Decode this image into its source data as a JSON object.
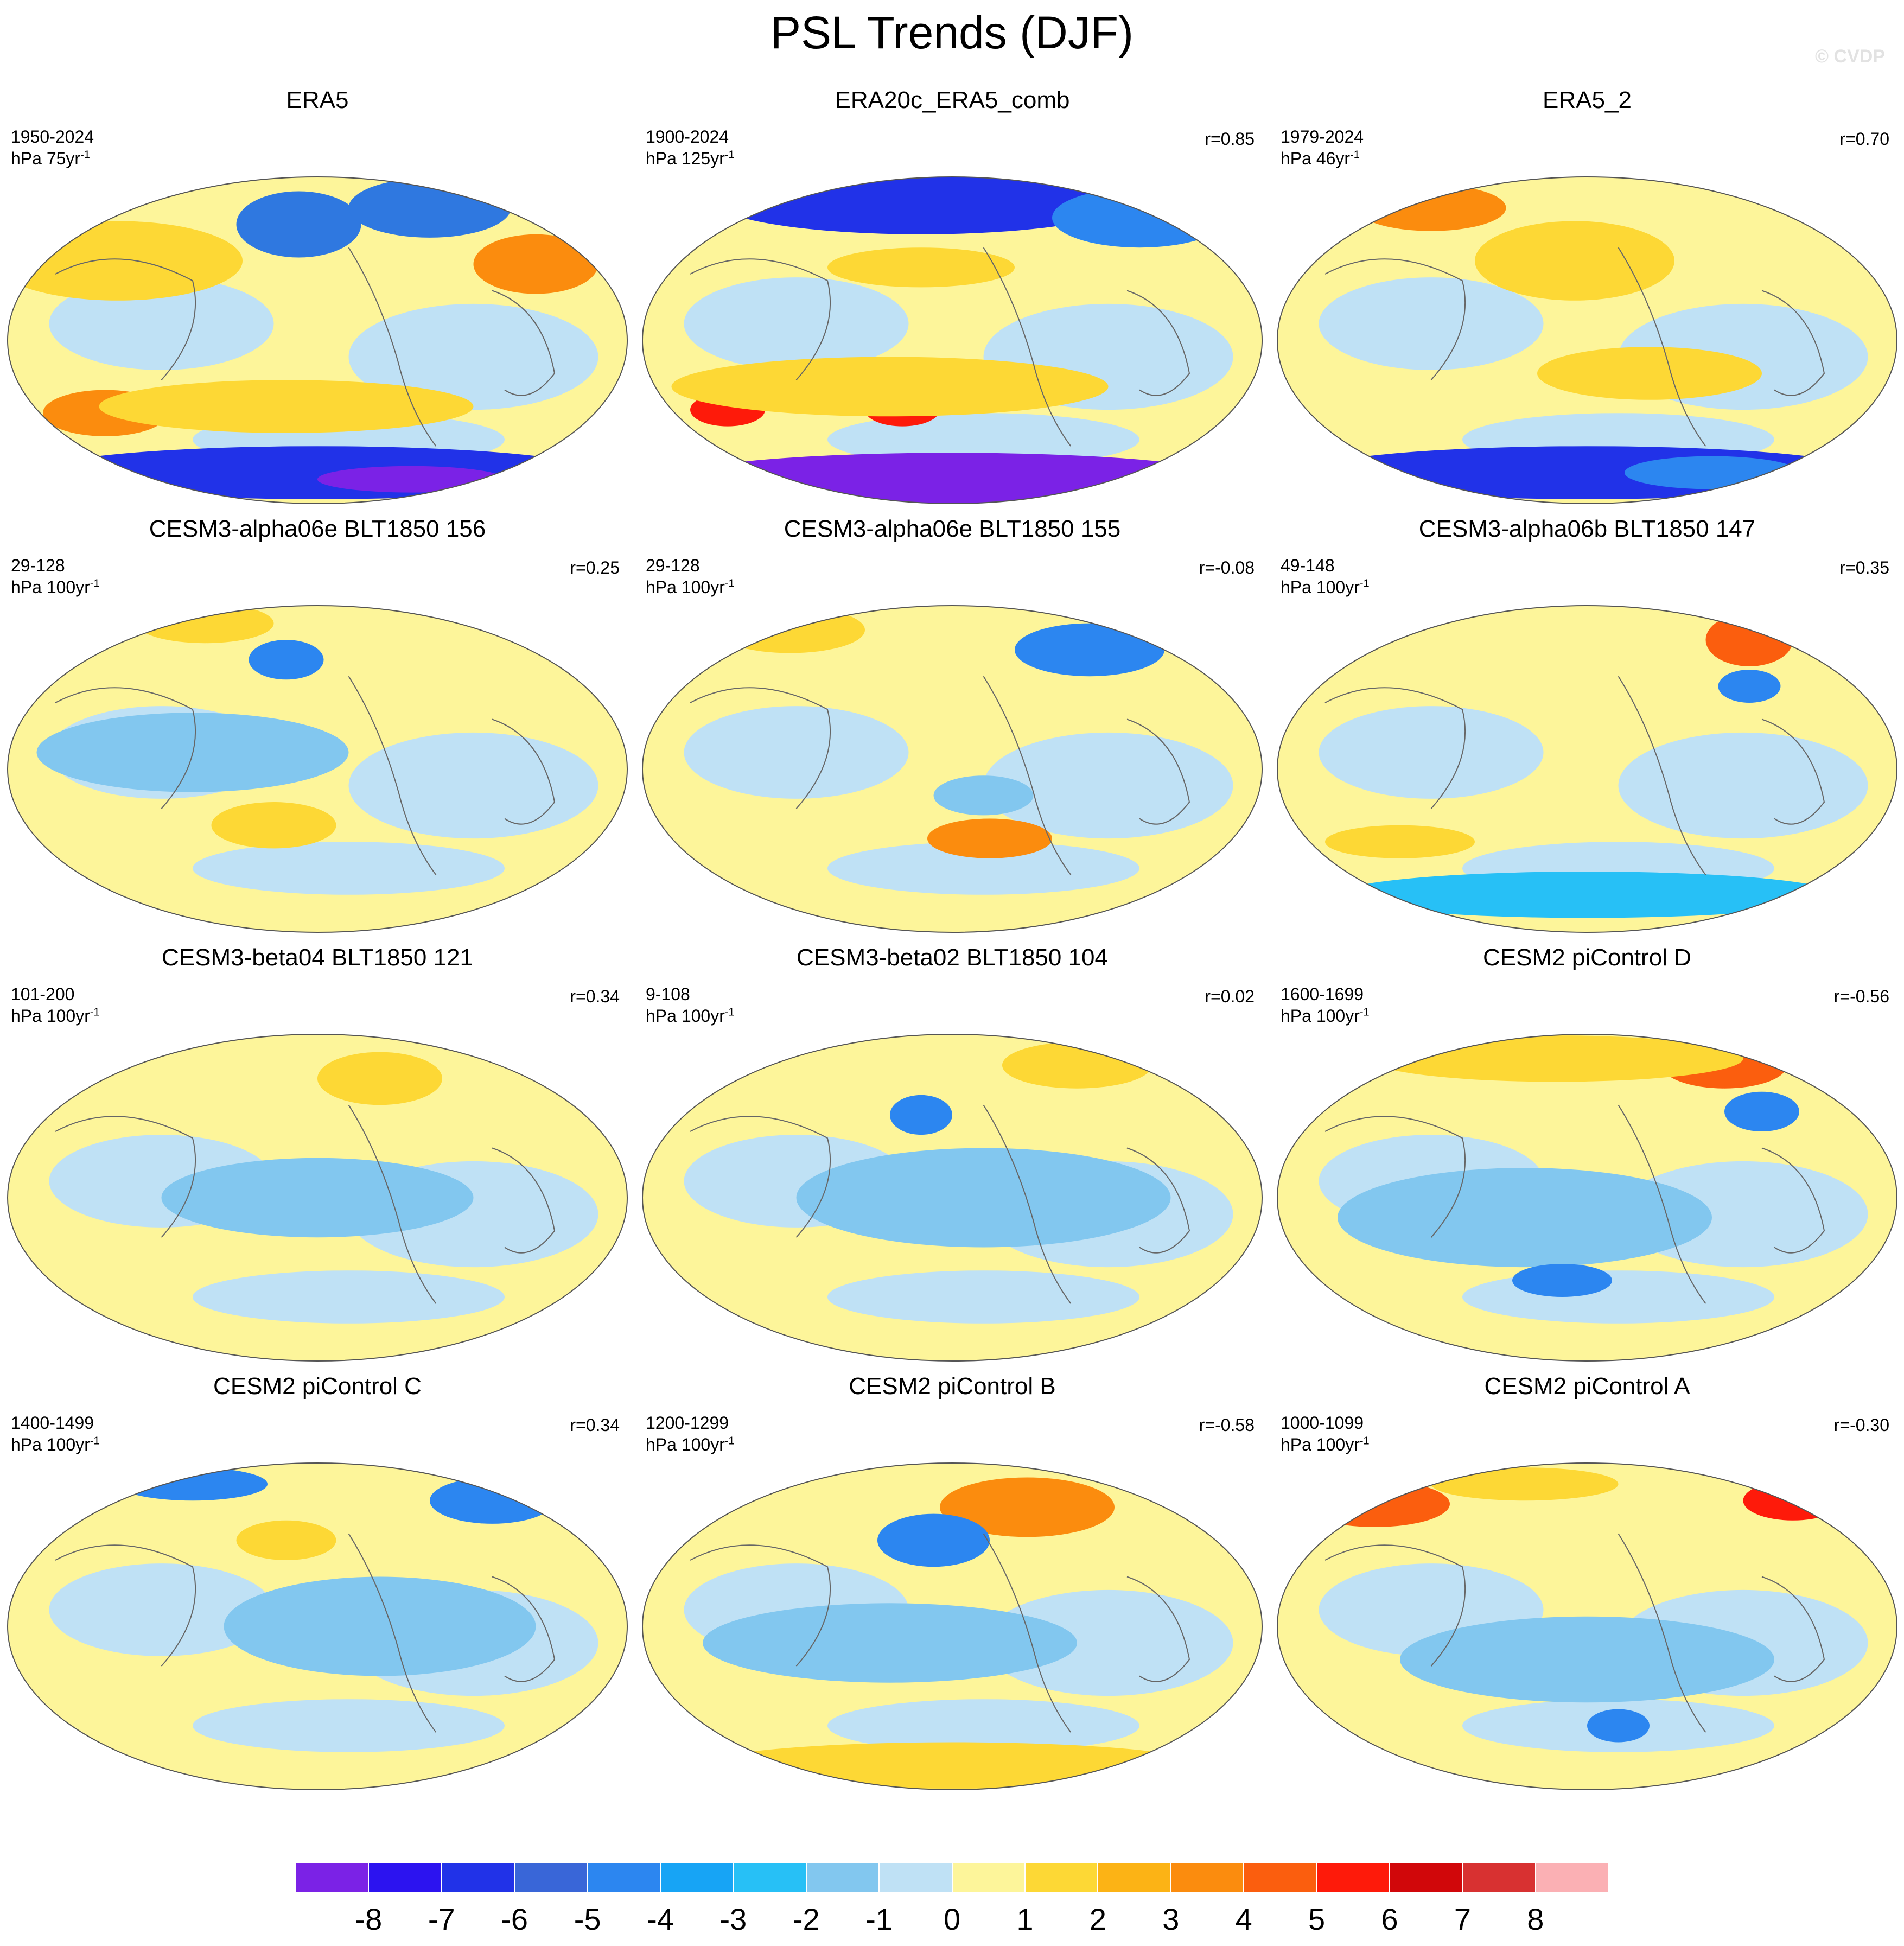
{
  "title": "PSL Trends (DJF)",
  "watermark": "© CVDP",
  "colorbar": {
    "labels": [
      "-8",
      "-7",
      "-6",
      "-5",
      "-4",
      "-3",
      "-2",
      "-1",
      "0",
      "1",
      "2",
      "3",
      "4",
      "5",
      "6",
      "7",
      "8"
    ],
    "colors": [
      "#7b22e6",
      "#2c13f0",
      "#2132e8",
      "#3966d8",
      "#2c86f0",
      "#17a4f5",
      "#27c0f6",
      "#82c7ef",
      "#bfe1f5",
      "#fdf59a",
      "#fdd835",
      "#fcb315",
      "#fb8c0e",
      "#fb5e0e",
      "#fe1a0a",
      "#d1070a",
      "#d83131",
      "#fbb0b4"
    ]
  },
  "panels": [
    {
      "title": "ERA5",
      "period": "1950-2024",
      "units_base": "hPa 75yr",
      "units_exp": "-1",
      "r": "",
      "features": [
        [
          "#2f78e0",
          0.47,
          0.15,
          0.1,
          0.1
        ],
        [
          "#2f78e0",
          0.68,
          0.1,
          0.13,
          0.09
        ],
        [
          "#fb8c0e",
          0.85,
          0.27,
          0.1,
          0.09
        ],
        [
          "#fdd835",
          0.18,
          0.26,
          0.2,
          0.12
        ],
        [
          "#fb8c0e",
          0.16,
          0.72,
          0.1,
          0.07
        ],
        [
          "#fdd835",
          0.45,
          0.7,
          0.3,
          0.08
        ],
        [
          "#2132e8",
          0.5,
          0.9,
          0.45,
          0.08
        ],
        [
          "#7b22e6",
          0.65,
          0.92,
          0.15,
          0.04
        ]
      ]
    },
    {
      "title": "ERA20c_ERA5_comb",
      "period": "1900-2024",
      "units_base": "hPa 125yr",
      "units_exp": "-1",
      "r": "r=0.85",
      "features": [
        [
          "#2132e8",
          0.45,
          0.08,
          0.33,
          0.1
        ],
        [
          "#2c86f0",
          0.8,
          0.13,
          0.14,
          0.09
        ],
        [
          "#fdd835",
          0.45,
          0.28,
          0.15,
          0.06
        ],
        [
          "#fe1a0a",
          0.14,
          0.71,
          0.06,
          0.05
        ],
        [
          "#fe1a0a",
          0.42,
          0.71,
          0.06,
          0.05
        ],
        [
          "#fdd835",
          0.4,
          0.64,
          0.35,
          0.09
        ],
        [
          "#7b22e6",
          0.5,
          0.92,
          0.45,
          0.08
        ]
      ]
    },
    {
      "title": "ERA5_2",
      "period": "1979-2024",
      "units_base": "hPa 46yr",
      "units_exp": "-1",
      "r": "r=0.70",
      "features": [
        [
          "#fe1a0a",
          0.48,
          0.26,
          0.08,
          0.07
        ],
        [
          "#fdd835",
          0.48,
          0.26,
          0.16,
          0.12
        ],
        [
          "#fb8c0e",
          0.25,
          0.1,
          0.12,
          0.07
        ],
        [
          "#fdd835",
          0.6,
          0.6,
          0.18,
          0.08
        ],
        [
          "#2132e8",
          0.5,
          0.9,
          0.45,
          0.08
        ],
        [
          "#2c86f0",
          0.7,
          0.9,
          0.14,
          0.05
        ]
      ]
    },
    {
      "title": "CESM3-alpha06e BLT1850 156",
      "period": "29-128",
      "units_base": "hPa 100yr",
      "units_exp": "-1",
      "r": "r=0.25",
      "features": [
        [
          "#fdd835",
          0.32,
          0.06,
          0.11,
          0.06
        ],
        [
          "#2c86f0",
          0.45,
          0.17,
          0.06,
          0.06
        ],
        [
          "#fdd835",
          0.43,
          0.67,
          0.1,
          0.07
        ],
        [
          "#82c7ef",
          0.3,
          0.45,
          0.25,
          0.12
        ]
      ]
    },
    {
      "title": "CESM3-alpha06e BLT1850 155",
      "period": "29-128",
      "units_base": "hPa 100yr",
      "units_exp": "-1",
      "r": "r=-0.08",
      "features": [
        [
          "#fdd835",
          0.24,
          0.08,
          0.12,
          0.07
        ],
        [
          "#2c86f0",
          0.72,
          0.14,
          0.12,
          0.08
        ],
        [
          "#fb8c0e",
          0.56,
          0.71,
          0.1,
          0.06
        ],
        [
          "#82c7ef",
          0.55,
          0.58,
          0.08,
          0.06
        ]
      ]
    },
    {
      "title": "CESM3-alpha06b BLT1850 147",
      "period": "49-148",
      "units_base": "hPa 100yr",
      "units_exp": "-1",
      "r": "r=0.35",
      "features": [
        [
          "#fb5e0e",
          0.76,
          0.11,
          0.07,
          0.08
        ],
        [
          "#2c86f0",
          0.76,
          0.25,
          0.05,
          0.05
        ],
        [
          "#27c0f6",
          0.5,
          0.88,
          0.4,
          0.07
        ],
        [
          "#fdd835",
          0.2,
          0.72,
          0.12,
          0.05
        ]
      ]
    },
    {
      "title": "CESM3-beta04 BLT1850 121",
      "period": "101-200",
      "units_base": "hPa 100yr",
      "units_exp": "-1",
      "r": "r=0.34",
      "features": [
        [
          "#fdd835",
          0.6,
          0.14,
          0.1,
          0.08
        ],
        [
          "#82c7ef",
          0.5,
          0.5,
          0.25,
          0.12
        ]
      ]
    },
    {
      "title": "CESM3-beta02 BLT1850 104",
      "period": "9-108",
      "units_base": "hPa 100yr",
      "units_exp": "-1",
      "r": "r=0.02",
      "features": [
        [
          "#fdd835",
          0.7,
          0.1,
          0.12,
          0.07
        ],
        [
          "#2c86f0",
          0.45,
          0.25,
          0.05,
          0.06
        ],
        [
          "#82c7ef",
          0.55,
          0.5,
          0.3,
          0.15
        ]
      ]
    },
    {
      "title": "CESM2 piControl D",
      "period": "1600-1699",
      "units_base": "hPa 100yr",
      "units_exp": "-1",
      "r": "r=-0.56",
      "features": [
        [
          "#fb5e0e",
          0.72,
          0.1,
          0.1,
          0.07
        ],
        [
          "#fdd835",
          0.45,
          0.08,
          0.3,
          0.07
        ],
        [
          "#2c86f0",
          0.78,
          0.24,
          0.06,
          0.06
        ],
        [
          "#82c7ef",
          0.4,
          0.56,
          0.3,
          0.15
        ],
        [
          "#2c86f0",
          0.46,
          0.75,
          0.08,
          0.05
        ]
      ]
    },
    {
      "title": "CESM2 piControl C",
      "period": "1400-1499",
      "units_base": "hPa 100yr",
      "units_exp": "-1",
      "r": "r=0.34",
      "features": [
        [
          "#2c86f0",
          0.78,
          0.12,
          0.1,
          0.07
        ],
        [
          "#2c86f0",
          0.3,
          0.07,
          0.12,
          0.05
        ],
        [
          "#fdd835",
          0.45,
          0.24,
          0.08,
          0.06
        ],
        [
          "#82c7ef",
          0.6,
          0.5,
          0.25,
          0.15
        ]
      ]
    },
    {
      "title": "CESM2 piControl B",
      "period": "1200-1299",
      "units_base": "hPa 100yr",
      "units_exp": "-1",
      "r": "r=-0.58",
      "features": [
        [
          "#fb8c0e",
          0.62,
          0.14,
          0.14,
          0.09
        ],
        [
          "#2c86f0",
          0.47,
          0.24,
          0.09,
          0.08
        ],
        [
          "#fdd835",
          0.5,
          0.92,
          0.4,
          0.07
        ],
        [
          "#82c7ef",
          0.4,
          0.55,
          0.3,
          0.12
        ]
      ]
    },
    {
      "title": "CESM2 piControl A",
      "period": "1000-1099",
      "units_base": "hPa 100yr",
      "units_exp": "-1",
      "r": "r=-0.30",
      "features": [
        [
          "#fb5e0e",
          0.16,
          0.13,
          0.12,
          0.07
        ],
        [
          "#fe1a0a",
          0.83,
          0.12,
          0.08,
          0.06
        ],
        [
          "#fdd835",
          0.4,
          0.07,
          0.15,
          0.05
        ],
        [
          "#82c7ef",
          0.5,
          0.6,
          0.3,
          0.13
        ],
        [
          "#2c86f0",
          0.55,
          0.8,
          0.05,
          0.05
        ]
      ]
    }
  ]
}
